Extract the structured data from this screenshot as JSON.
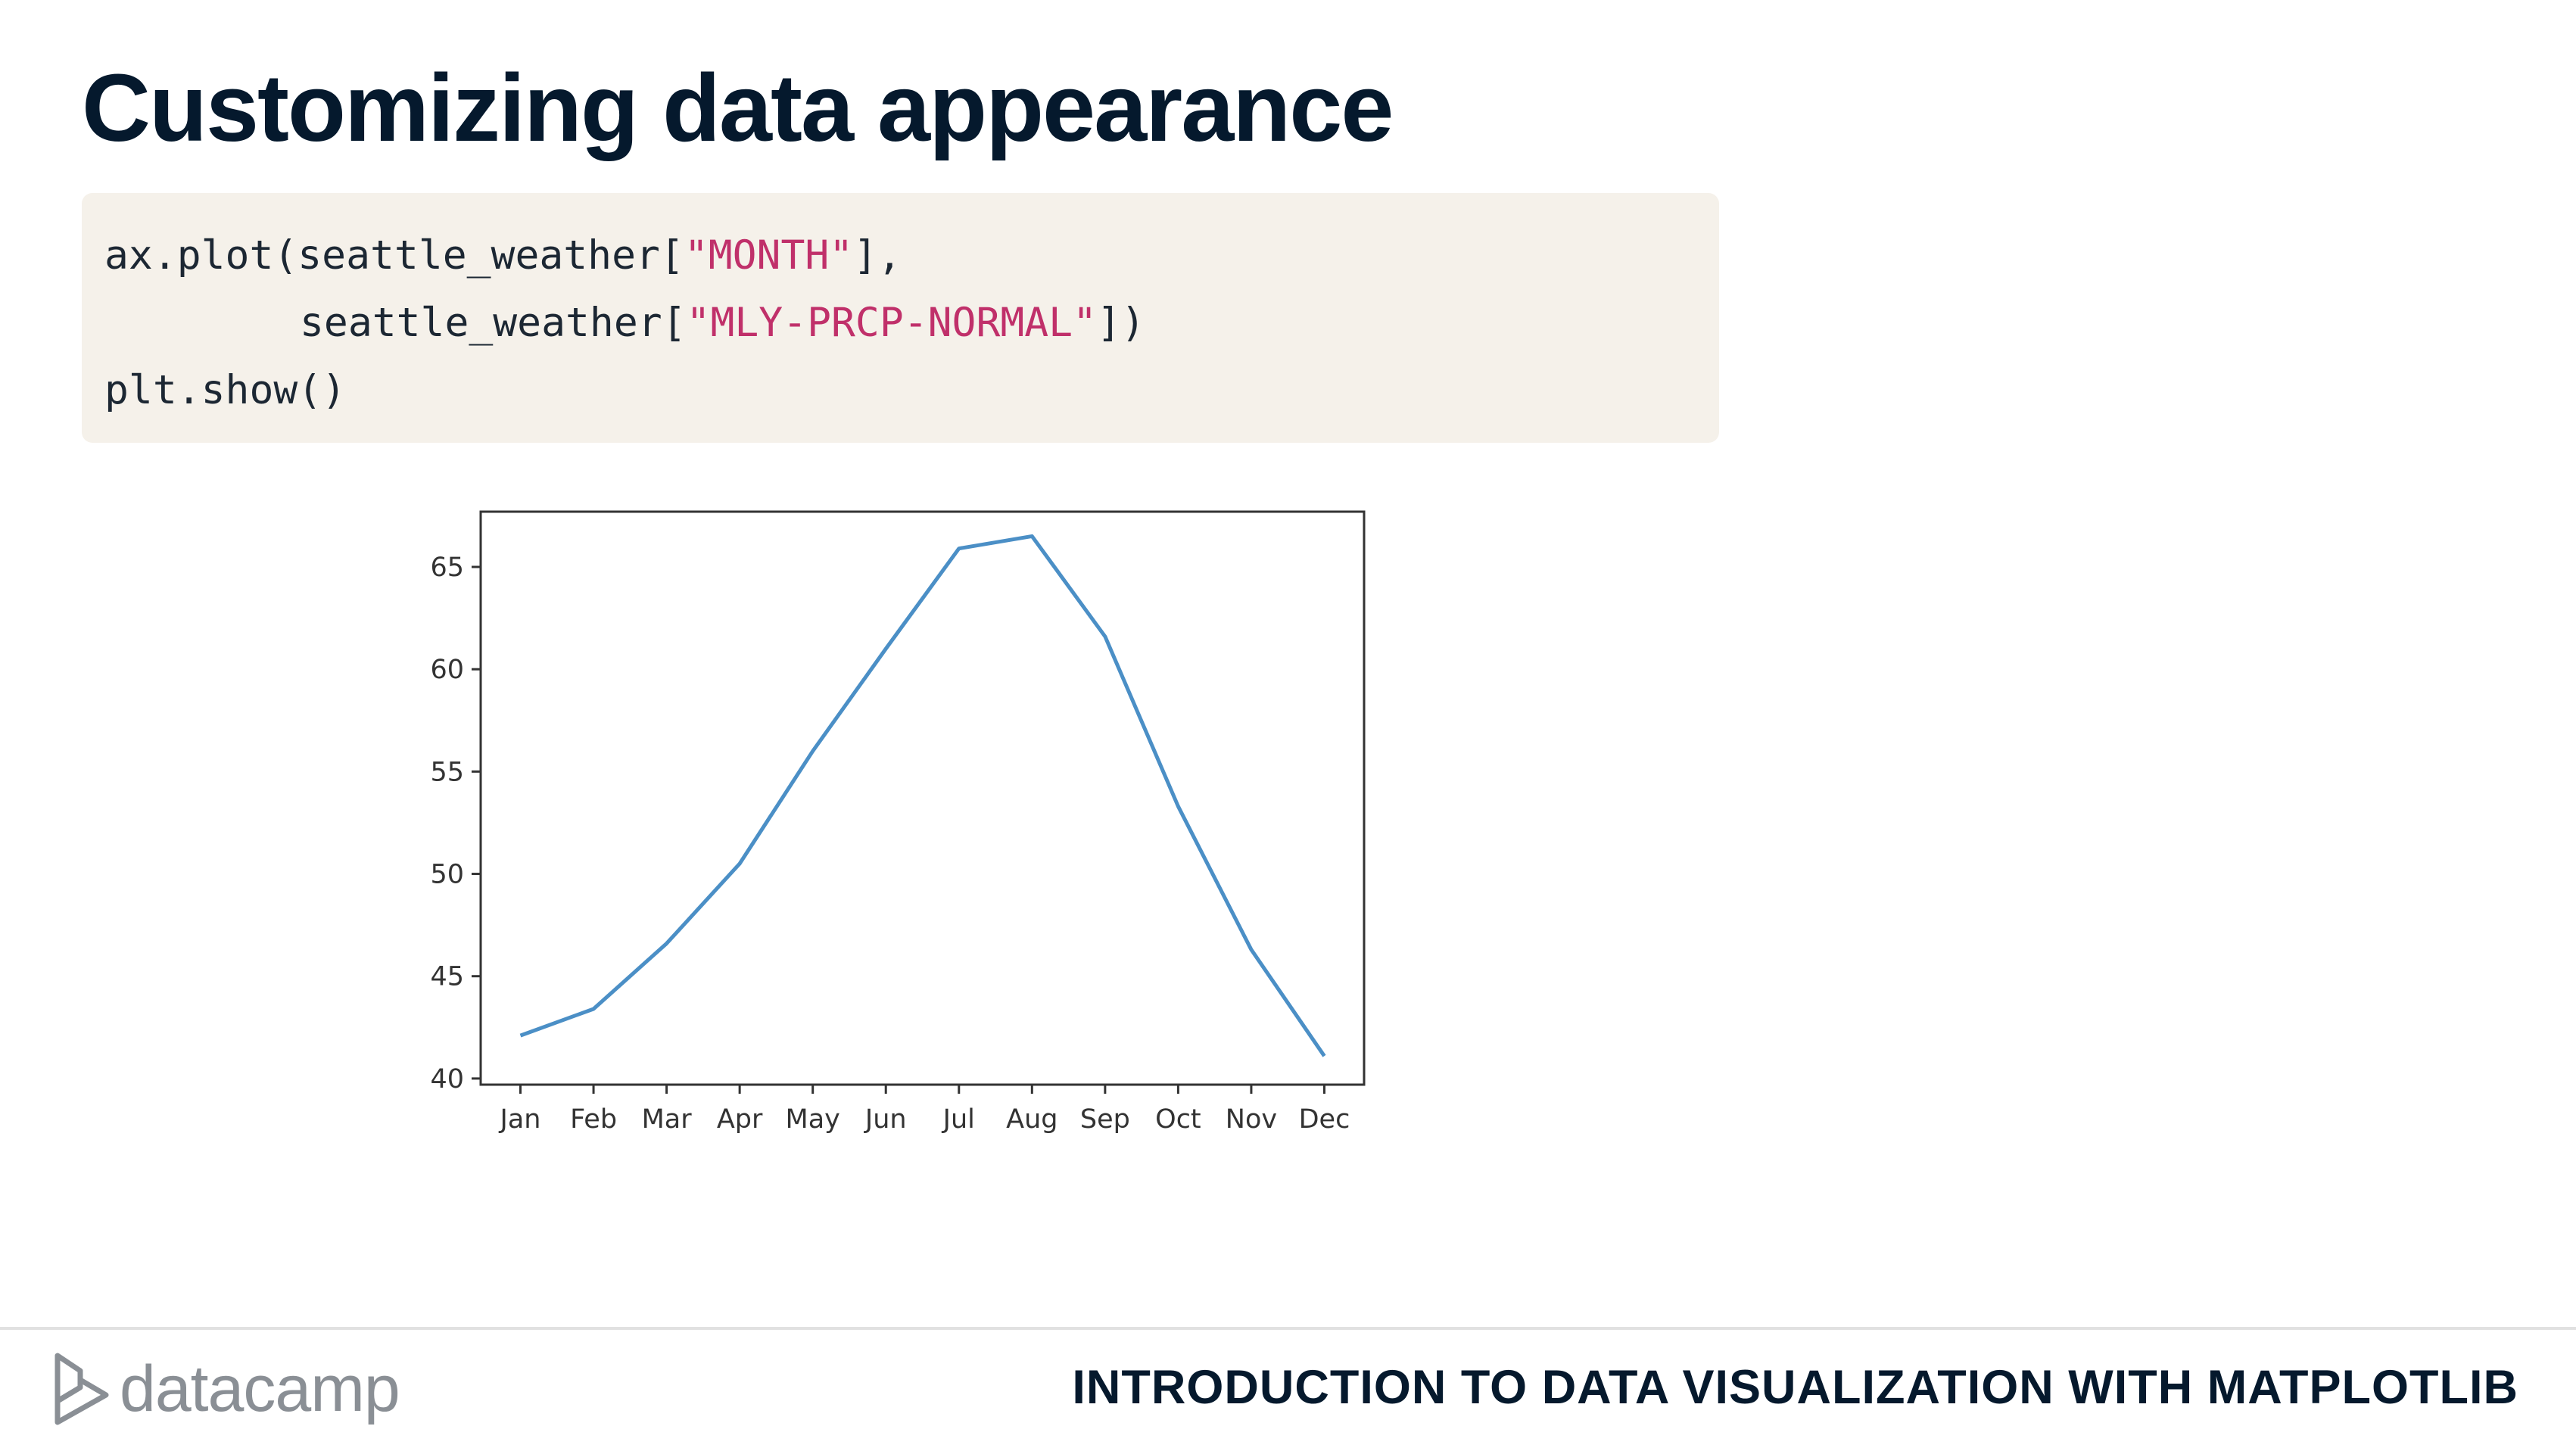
{
  "slide": {
    "title": "Customizing data appearance",
    "course_title": "INTRODUCTION TO DATA VISUALIZATION WITH MATPLOTLIB"
  },
  "brand": {
    "logo_text": "datacamp",
    "logo_icon": "datacamp-logo-icon",
    "title_color": "#05192d",
    "logo_color": "#8a8f95"
  },
  "code": {
    "background": "#f5f1ea",
    "string_color": "#c0306a",
    "line1_pre": "ax.plot(seattle_weather[",
    "line1_str": "\"MONTH\"",
    "line1_post": "],",
    "line2_pre": "seattle_weather[",
    "line2_str": "\"MLY-PRCP-NORMAL\"",
    "line2_post": "])",
    "line3": "plt.show()"
  },
  "chart_data": {
    "type": "line",
    "categories": [
      "Jan",
      "Feb",
      "Mar",
      "Apr",
      "May",
      "Jun",
      "Jul",
      "Aug",
      "Sep",
      "Oct",
      "Nov",
      "Dec"
    ],
    "values": [
      42.1,
      43.4,
      46.6,
      50.5,
      56.0,
      61.0,
      65.9,
      66.5,
      61.6,
      53.3,
      46.3,
      41.1
    ],
    "title": "",
    "xlabel": "",
    "ylabel": "",
    "ylim": [
      39.7,
      67.7
    ],
    "yticks": [
      40,
      45,
      50,
      55,
      60,
      65
    ],
    "grid": false,
    "line_color": "#4b8fc6"
  }
}
